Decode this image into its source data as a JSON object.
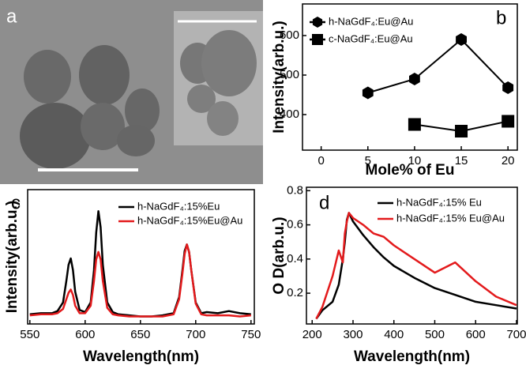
{
  "image_panel": {
    "label": "a"
  },
  "chart_data": [
    {
      "type": "line",
      "label": "b",
      "y_label": "Intensity(arb.u.)",
      "x_label": "Mole% of Eu",
      "x": [
        5,
        10,
        15,
        20
      ],
      "xlim": [
        -2,
        21
      ],
      "xticks": [
        0,
        5,
        10,
        15,
        20
      ],
      "ylim": [
        310,
        680
      ],
      "yticks": [
        400,
        500,
        600
      ],
      "grid": false,
      "legend": "upper left",
      "series": [
        {
          "name": "h-NaGdF₄:Eu@Au",
          "color": "#000000",
          "marker": "hexagon",
          "values": [
            455,
            490,
            590,
            468
          ]
        },
        {
          "name": "c-NaGdF₄:Eu@Au",
          "color": "#000000",
          "marker": "square",
          "values": [
            null,
            375,
            358,
            383
          ]
        }
      ]
    },
    {
      "type": "line",
      "label": "c",
      "y_label": "Intensity(arb.u.)",
      "x_label": "Wavelength(nm)",
      "x": [
        550,
        560,
        570,
        575,
        580,
        583,
        585,
        587,
        589,
        591,
        595,
        600,
        605,
        608,
        610,
        612,
        614,
        616,
        620,
        625,
        630,
        640,
        650,
        660,
        670,
        680,
        685,
        688,
        690,
        692,
        694,
        696,
        700,
        705,
        710,
        720,
        730,
        740,
        750
      ],
      "xlim": [
        548,
        753
      ],
      "xticks": [
        550,
        600,
        650,
        700,
        750
      ],
      "ylim": [
        -0.05,
        1.2
      ],
      "grid": false,
      "legend": "upper right",
      "series": [
        {
          "name": "h-NaGdF₄:15%Eu",
          "color": "#000000",
          "values": [
            0.04,
            0.05,
            0.05,
            0.07,
            0.15,
            0.35,
            0.5,
            0.56,
            0.45,
            0.25,
            0.08,
            0.06,
            0.15,
            0.45,
            0.8,
            1.0,
            0.85,
            0.5,
            0.15,
            0.06,
            0.04,
            0.03,
            0.02,
            0.02,
            0.03,
            0.05,
            0.2,
            0.45,
            0.63,
            0.69,
            0.62,
            0.45,
            0.15,
            0.05,
            0.06,
            0.05,
            0.07,
            0.05,
            0.04
          ]
        },
        {
          "name": "h-NaGdF₄:15%Eu@Au",
          "color": "#e31a1c",
          "values": [
            0.03,
            0.04,
            0.04,
            0.05,
            0.09,
            0.18,
            0.24,
            0.27,
            0.22,
            0.12,
            0.05,
            0.05,
            0.12,
            0.35,
            0.55,
            0.62,
            0.55,
            0.35,
            0.1,
            0.04,
            0.03,
            0.02,
            0.02,
            0.02,
            0.02,
            0.04,
            0.18,
            0.42,
            0.6,
            0.69,
            0.62,
            0.45,
            0.14,
            0.04,
            0.03,
            0.03,
            0.03,
            0.02,
            0.03
          ]
        }
      ]
    },
    {
      "type": "line",
      "label": "d",
      "y_label": "O D(arb.u.)",
      "x_label": "Wavelength(nm)",
      "x": [
        210,
        225,
        250,
        265,
        275,
        280,
        285,
        290,
        300,
        325,
        350,
        375,
        400,
        450,
        500,
        550,
        600,
        650,
        700
      ],
      "xlim": [
        186,
        702
      ],
      "xticks": [
        200,
        300,
        400,
        500,
        600,
        700
      ],
      "ylim": [
        0.02,
        0.82
      ],
      "yticks": [
        0.2,
        0.4,
        0.6,
        0.8
      ],
      "grid": false,
      "legend": "upper right",
      "series": [
        {
          "name": "h-NaGdF₄:15% Eu",
          "color": "#000000",
          "values": [
            0.05,
            0.1,
            0.15,
            0.25,
            0.4,
            0.5,
            0.63,
            0.67,
            0.62,
            0.54,
            0.47,
            0.41,
            0.36,
            0.29,
            0.23,
            0.19,
            0.15,
            0.13,
            0.11
          ]
        },
        {
          "name": "h-NaGdF₄:15% Eu@Au",
          "color": "#e31a1c",
          "values": [
            0.05,
            0.12,
            0.3,
            0.45,
            0.38,
            0.55,
            0.62,
            0.67,
            0.64,
            0.6,
            0.55,
            0.53,
            0.48,
            0.4,
            0.32,
            0.38,
            0.27,
            0.18,
            0.13
          ]
        }
      ]
    }
  ]
}
